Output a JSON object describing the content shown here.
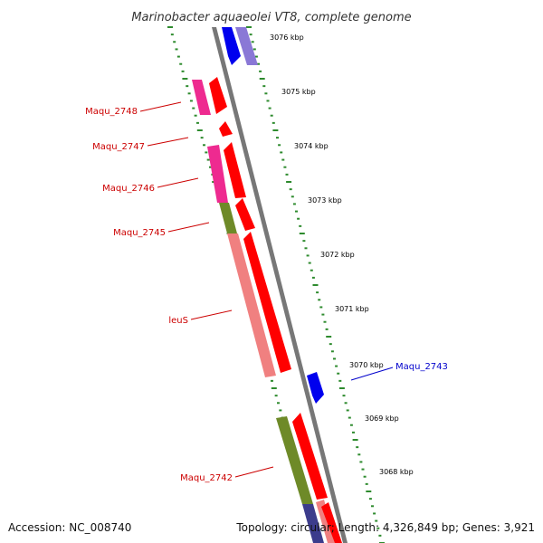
{
  "title": "Marinobacter aquaeolei VT8, complete genome",
  "colors": {
    "blue": "#0000ee",
    "lavender": "#8a78d6",
    "red": "#ff0000",
    "magenta": "#ee2a90",
    "olive": "#6e8a28",
    "salmon": "#f08080",
    "navy": "#3c3c8c",
    "tick_green": "#2e8b2e",
    "backbone": "#7a7a7a",
    "label_red": "#cc0000",
    "label_blue": "#0000cc"
  },
  "kbp_labels": [
    "3076 kbp",
    "3075 kbp",
    "3074 kbp",
    "3073 kbp",
    "3072 kbp",
    "3071 kbp",
    "3070 kbp",
    "3069 kbp",
    "3068 kbp"
  ],
  "gene_labels": [
    {
      "text": "Maqu_2748",
      "color": "label_red"
    },
    {
      "text": "Maqu_2747",
      "color": "label_red"
    },
    {
      "text": "Maqu_2746",
      "color": "label_red"
    },
    {
      "text": "Maqu_2745",
      "color": "label_red"
    },
    {
      "text": "leuS",
      "color": "label_red"
    },
    {
      "text": "Maqu_2743",
      "color": "label_blue"
    },
    {
      "text": "Maqu_2742",
      "color": "label_red"
    }
  ],
  "footer": {
    "accession": "Accession: NC_008740",
    "summary": "Topology: circular; Length: 4,326,849 bp; Genes: 3,921"
  }
}
